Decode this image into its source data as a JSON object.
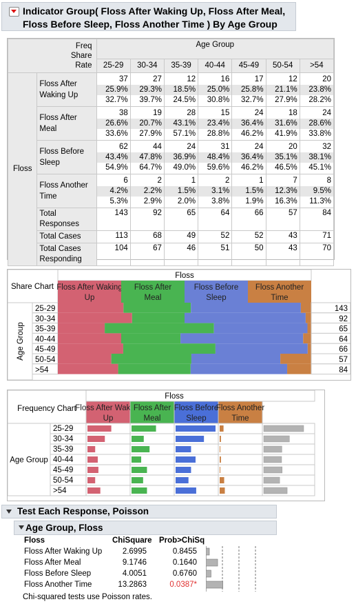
{
  "header": {
    "line1": "Indicator Group(   Floss After Waking Up,   Floss After Meal,",
    "line2": "Floss Before Sleep,   Floss Another Time  ) By Age Group"
  },
  "crosstab": {
    "stat_labels": [
      "Freq",
      "Share",
      "Rate"
    ],
    "col_group": "Age Group",
    "row_group": "Floss",
    "age_groups": [
      "25-29",
      "30-34",
      "35-39",
      "40-44",
      "45-49",
      "50-54",
      ">54"
    ],
    "rows": [
      {
        "label": "Floss After Waking Up",
        "freq": [
          "37",
          "27",
          "12",
          "16",
          "17",
          "12",
          "20"
        ],
        "share": [
          "25.9%",
          "29.3%",
          "18.5%",
          "25.0%",
          "25.8%",
          "21.1%",
          "23.8%"
        ],
        "rate": [
          "32.7%",
          "39.7%",
          "24.5%",
          "30.8%",
          "32.7%",
          "27.9%",
          "28.2%"
        ]
      },
      {
        "label": "Floss After Meal",
        "freq": [
          "38",
          "19",
          "28",
          "15",
          "24",
          "18",
          "24"
        ],
        "share": [
          "26.6%",
          "20.7%",
          "43.1%",
          "23.4%",
          "36.4%",
          "31.6%",
          "28.6%"
        ],
        "rate": [
          "33.6%",
          "27.9%",
          "57.1%",
          "28.8%",
          "46.2%",
          "41.9%",
          "33.8%"
        ]
      },
      {
        "label": "Floss Before Sleep",
        "freq": [
          "62",
          "44",
          "24",
          "31",
          "24",
          "20",
          "32"
        ],
        "share": [
          "43.4%",
          "47.8%",
          "36.9%",
          "48.4%",
          "36.4%",
          "35.1%",
          "38.1%"
        ],
        "rate": [
          "54.9%",
          "64.7%",
          "49.0%",
          "59.6%",
          "46.2%",
          "46.5%",
          "45.1%"
        ]
      },
      {
        "label": "Floss Another Time",
        "freq": [
          "6",
          "2",
          "1",
          "2",
          "1",
          "7",
          "8"
        ],
        "share": [
          "4.2%",
          "2.2%",
          "1.5%",
          "3.1%",
          "1.5%",
          "12.3%",
          "9.5%"
        ],
        "rate": [
          "5.3%",
          "2.9%",
          "2.0%",
          "3.8%",
          "1.9%",
          "16.3%",
          "11.3%"
        ]
      }
    ],
    "totals": [
      {
        "label": "Total Responses",
        "values": [
          "143",
          "92",
          "65",
          "64",
          "66",
          "57",
          "84"
        ]
      },
      {
        "label": "Total Cases",
        "values": [
          "113",
          "68",
          "49",
          "52",
          "52",
          "43",
          "71"
        ]
      },
      {
        "label": "Total Cases Responding",
        "values": [
          "104",
          "67",
          "46",
          "51",
          "50",
          "43",
          "70"
        ]
      }
    ]
  },
  "share_chart": {
    "title": "Share Chart",
    "group_title": "Floss",
    "row_title": "Age Group",
    "legend": [
      "Floss After Waking Up",
      "Floss After Meal",
      "Floss Before Sleep",
      "Floss Another Time"
    ],
    "colors": [
      "#d36272",
      "#49b451",
      "#6a80d5",
      "#c98043"
    ],
    "totals": [
      "143",
      "92",
      "65",
      "64",
      "66",
      "57",
      "84"
    ]
  },
  "freq_chart": {
    "title": "Frequency Chart",
    "group_title": "Floss",
    "row_title": "Age Group",
    "legend": [
      "Floss After Waking Up",
      "Floss After Meal",
      "Floss Before Sleep",
      "Floss Another Time"
    ],
    "colors": [
      "#d36272",
      "#49b451",
      "#4a6fd8",
      "#c98043"
    ],
    "total_color": "#b3b3b3"
  },
  "test": {
    "title": "Test Each Response, Poisson",
    "subtitle": "Age Group, Floss",
    "headers": [
      "Floss",
      "ChiSquare",
      "Prob>ChiSq"
    ],
    "rows": [
      {
        "name": "Floss After Waking Up",
        "chisq": "2.6995",
        "chisq_value": 2.6995,
        "prob": "0.8455",
        "significant": false
      },
      {
        "name": "Floss After Meal",
        "chisq": "9.1746",
        "chisq_value": 9.1746,
        "prob": "0.1640",
        "significant": false
      },
      {
        "name": "Floss Before Sleep",
        "chisq": "4.0051",
        "chisq_value": 4.0051,
        "prob": "0.6760",
        "significant": false
      },
      {
        "name": "Floss Another Time",
        "chisq": "13.2863",
        "chisq_value": 13.2863,
        "prob": "0.0387*",
        "significant": true
      }
    ],
    "note": "Chi-squared tests use Poisson rates.",
    "sig_color": "#e0302f"
  }
}
